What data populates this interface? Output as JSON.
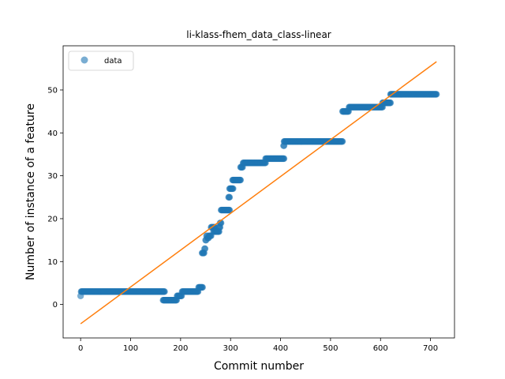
{
  "chart_data": {
    "type": "scatter",
    "title": "li-klass-fhem_data_class-linear",
    "xlabel": "Commit number",
    "ylabel": "Number of instance of a feature",
    "xlim": [
      -35,
      748
    ],
    "ylim": [
      -7.8,
      60.3
    ],
    "x_ticks": [
      0,
      100,
      200,
      300,
      400,
      500,
      600,
      700
    ],
    "y_ticks": [
      0,
      10,
      20,
      30,
      40,
      50
    ],
    "legend": {
      "placement": "top-left",
      "entries": [
        "data"
      ]
    },
    "grid": false,
    "colors": {
      "data": "#1f77b4",
      "fit": "#ff7f0e"
    },
    "series": [
      {
        "name": "data",
        "kind": "scatter",
        "steps": [
          {
            "x_start": 0,
            "x_end": 0,
            "y": 2
          },
          {
            "x_start": 1,
            "x_end": 168,
            "y": 3
          },
          {
            "x_start": 165,
            "x_end": 192,
            "y": 1
          },
          {
            "x_start": 193,
            "x_end": 202,
            "y": 2
          },
          {
            "x_start": 203,
            "x_end": 235,
            "y": 3
          },
          {
            "x_start": 236,
            "x_end": 244,
            "y": 4
          },
          {
            "x_start": 243,
            "x_end": 247,
            "y": 12
          },
          {
            "x_start": 248,
            "x_end": 249,
            "y": 13
          },
          {
            "x_start": 250,
            "x_end": 251,
            "y": 15
          },
          {
            "x_start": 252,
            "x_end": 253,
            "y": 16
          },
          {
            "x_start": 254,
            "x_end": 256,
            "y": 15.5
          },
          {
            "x_start": 257,
            "x_end": 261,
            "y": 16
          },
          {
            "x_start": 261,
            "x_end": 269,
            "y": 18
          },
          {
            "x_start": 266,
            "x_end": 277,
            "y": 17
          },
          {
            "x_start": 277,
            "x_end": 279,
            "y": 18
          },
          {
            "x_start": 279,
            "x_end": 281,
            "y": 19
          },
          {
            "x_start": 281,
            "x_end": 298,
            "y": 22
          },
          {
            "x_start": 296,
            "x_end": 298,
            "y": 25
          },
          {
            "x_start": 298,
            "x_end": 305,
            "y": 27
          },
          {
            "x_start": 304,
            "x_end": 320,
            "y": 29
          },
          {
            "x_start": 320,
            "x_end": 324,
            "y": 32
          },
          {
            "x_start": 325,
            "x_end": 370,
            "y": 33
          },
          {
            "x_start": 370,
            "x_end": 407,
            "y": 34
          },
          {
            "x_start": 406,
            "x_end": 407,
            "y": 37
          },
          {
            "x_start": 407,
            "x_end": 524,
            "y": 38
          },
          {
            "x_start": 524,
            "x_end": 536,
            "y": 45
          },
          {
            "x_start": 537,
            "x_end": 604,
            "y": 46
          },
          {
            "x_start": 604,
            "x_end": 620,
            "y": 47
          },
          {
            "x_start": 620,
            "x_end": 712,
            "y": 49
          }
        ]
      },
      {
        "name": "",
        "kind": "line",
        "x": [
          0,
          712
        ],
        "y": [
          -4.5,
          56.6
        ]
      }
    ]
  }
}
